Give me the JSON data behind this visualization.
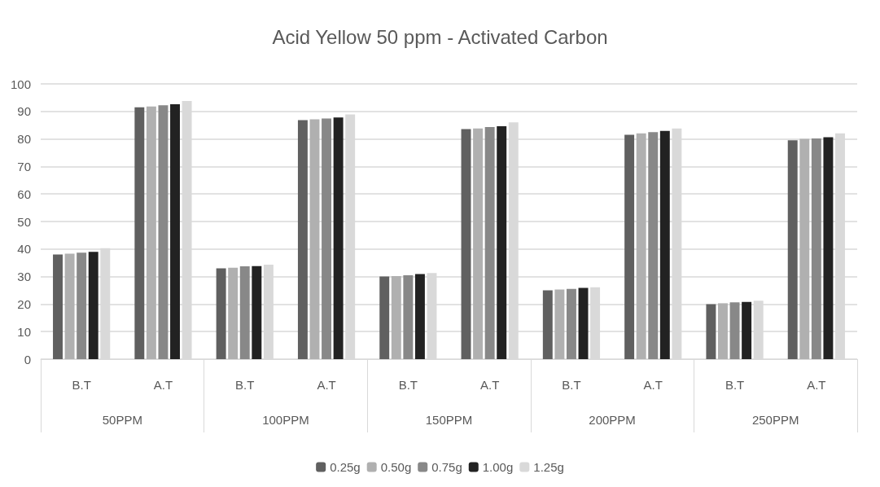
{
  "chart_data": {
    "type": "bar",
    "title": "Acid Yellow 50 ppm - Activated Carbon",
    "categories": [
      "B.T",
      "A.T",
      "B.T",
      "A.T",
      "B.T",
      "A.T",
      "B.T",
      "A.T",
      "B.T",
      "A.T"
    ],
    "annotations": [
      "50PPM",
      "100PPM",
      "150PPM",
      "200PPM",
      "250PPM"
    ],
    "series": [
      {
        "name": "0.25g",
        "color": "#606060",
        "values": [
          38,
          91.5,
          33,
          86.8,
          30,
          83.6,
          25,
          81.5,
          20,
          79.5
        ]
      },
      {
        "name": "0.50g",
        "color": "#b0b0b0",
        "values": [
          38.3,
          91.8,
          33.2,
          87.1,
          30.2,
          83.8,
          25.3,
          82,
          20.3,
          80
        ]
      },
      {
        "name": "0.75g",
        "color": "#888888",
        "values": [
          38.7,
          92.2,
          33.7,
          87.4,
          30.5,
          84.3,
          25.5,
          82.5,
          20.6,
          80.2
        ]
      },
      {
        "name": "1.00g",
        "color": "#222222",
        "values": [
          39,
          92.6,
          33.8,
          87.8,
          30.9,
          84.6,
          25.9,
          82.9,
          20.8,
          80.6
        ]
      },
      {
        "name": "1.25g",
        "color": "#d9d9d9",
        "values": [
          40.3,
          93.8,
          34.3,
          88.9,
          31.3,
          86,
          26.1,
          83.8,
          21.2,
          82
        ]
      }
    ],
    "ylim": [
      0,
      100
    ],
    "yticks": [
      0,
      10,
      20,
      30,
      40,
      50,
      60,
      70,
      80,
      90,
      100
    ],
    "grid": "y",
    "legend": "bottom"
  }
}
